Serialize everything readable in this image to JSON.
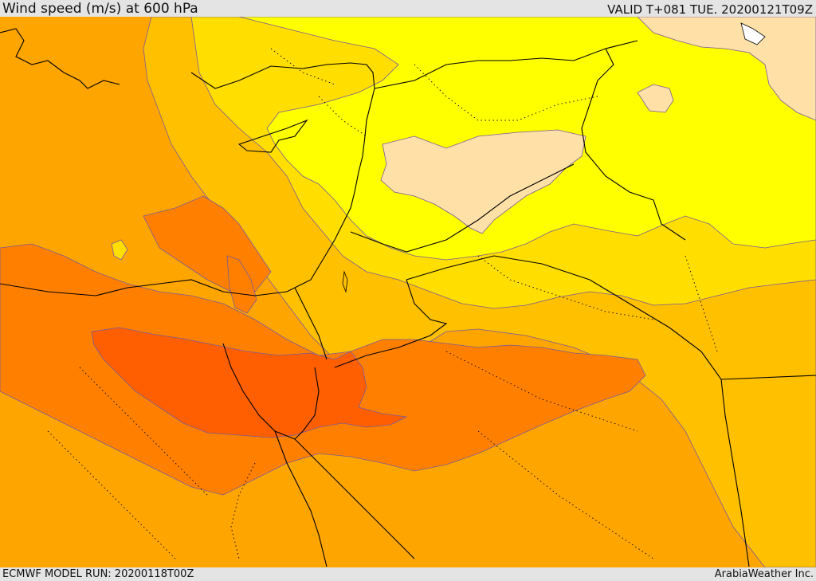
{
  "header": {
    "title": "Wind speed (m/s) at 600 hPa",
    "valid": "VALID T+081 TUE. 20200121T09Z"
  },
  "footer": {
    "model_run": "ECMWF MODEL RUN: 20200118T00Z",
    "credit": "ArabiaWeather Inc."
  },
  "map": {
    "colors": {
      "very_light": "#ffe1a8",
      "light": "#ffff00",
      "light_medium": "#ffde00",
      "medium": "#ffc000",
      "medium_strong": "#ffa500",
      "strong": "#ff8000",
      "very_strong": "#ff5f00",
      "contour": "#7a5a9a",
      "border": "#000000"
    }
  }
}
